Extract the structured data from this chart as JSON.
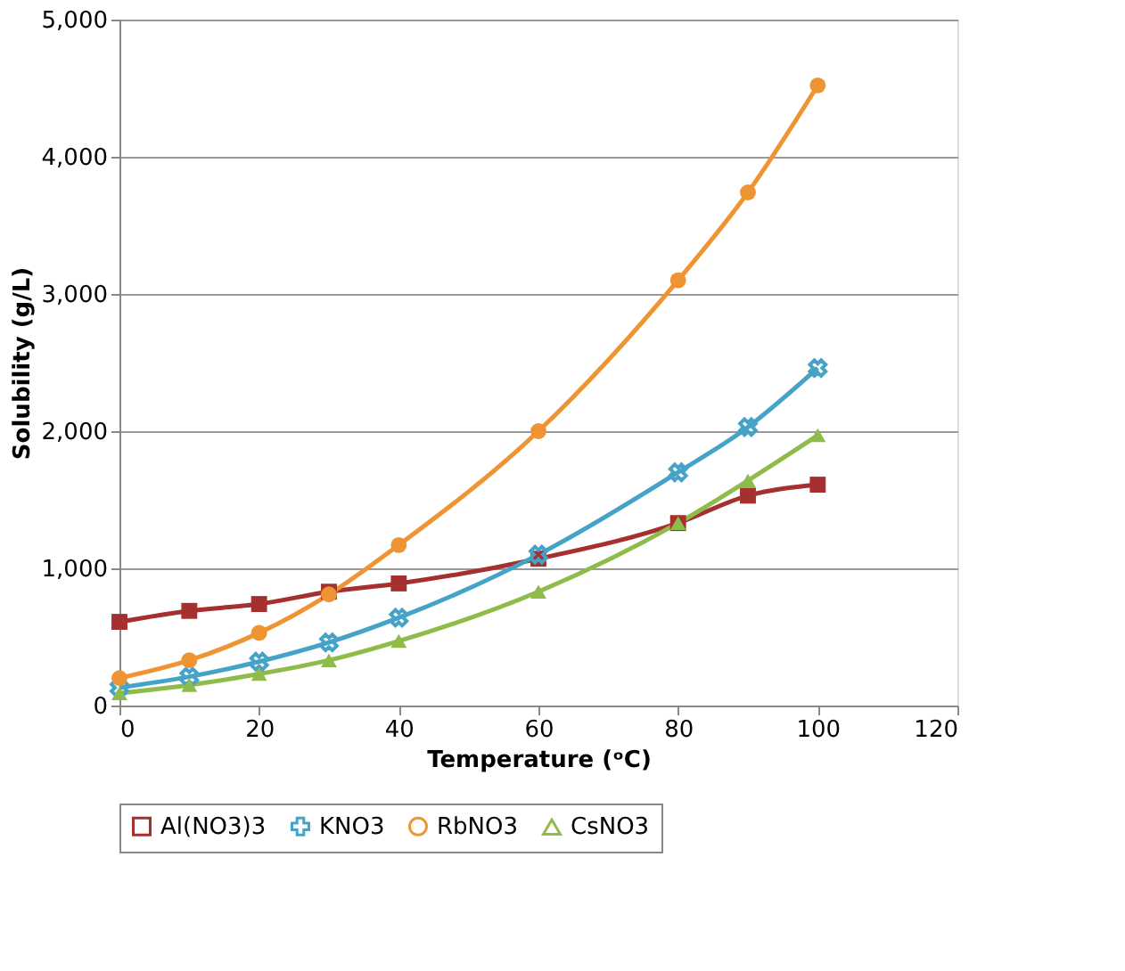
{
  "chart_data": {
    "type": "line",
    "xlabel": "Temperature (ᵒC)",
    "ylabel": "Solubility (g/L)",
    "x": [
      0,
      10,
      20,
      30,
      40,
      60,
      80,
      90,
      100
    ],
    "xlim": [
      0,
      120
    ],
    "xticks": [
      0,
      20,
      40,
      60,
      80,
      100,
      120
    ],
    "ylim": [
      0,
      5000
    ],
    "yticks": [
      {
        "value": 0,
        "label": "0"
      },
      {
        "value": 1000,
        "label": "1,000"
      },
      {
        "value": 2000,
        "label": "2,000"
      },
      {
        "value": 3000,
        "label": "3,000"
      },
      {
        "value": 4000,
        "label": "4,000"
      },
      {
        "value": 5000,
        "label": "5,000"
      }
    ],
    "grid": "y",
    "legend": "bottom",
    "line_style": "solid",
    "series": [
      {
        "name": "Al(NO3)3",
        "color": "#a5302f",
        "marker": "square",
        "values": [
          610,
          690,
          740,
          830,
          890,
          1070,
          1330,
          1530,
          1610
        ]
      },
      {
        "name": "KNO3",
        "color": "#46a3c8",
        "marker": "cross",
        "values": [
          130,
          210,
          320,
          460,
          640,
          1100,
          1700,
          2030,
          2460
        ]
      },
      {
        "name": "RbNO3",
        "color": "#ee9433",
        "marker": "circle",
        "values": [
          200,
          330,
          530,
          810,
          1170,
          2000,
          3100,
          3740,
          4520
        ]
      },
      {
        "name": "CsNO3",
        "color": "#8fbb4a",
        "marker": "triangle",
        "values": [
          90,
          150,
          230,
          330,
          470,
          830,
          1330,
          1640,
          1970
        ]
      }
    ]
  }
}
